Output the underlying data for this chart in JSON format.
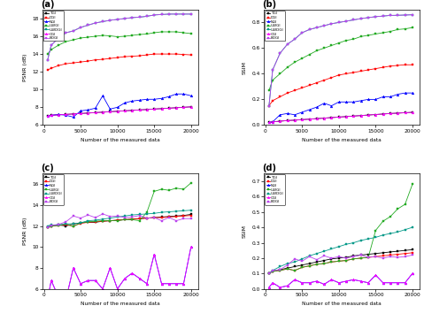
{
  "x": [
    500,
    1000,
    2000,
    3000,
    4000,
    5000,
    6000,
    7000,
    8000,
    9000,
    10000,
    11000,
    12000,
    13000,
    14000,
    15000,
    16000,
    17000,
    18000,
    19000,
    20000
  ],
  "legend_labels": [
    "TGI",
    "DGI",
    "NGI",
    "UWGI",
    "UWDGI",
    "CGI",
    "BDGI"
  ],
  "panel_labels": [
    "(a)",
    "(b)",
    "(c)",
    "(d)"
  ],
  "series_colors": {
    "TGI": "black",
    "DGI": "red",
    "NGI": "blue",
    "UWGI": "#22aa22",
    "UWDGI": "#009988",
    "CGI": "magenta",
    "BDGI": "#bb44ee"
  },
  "series_markers": {
    "TGI": "s",
    "DGI": "s",
    "NGI": "^",
    "UWGI": "s",
    "UWDGI": "s",
    "CGI": "^",
    "BDGI": "s"
  },
  "a_psnr": {
    "TGI": [
      7.0,
      7.1,
      7.15,
      7.2,
      7.25,
      7.3,
      7.35,
      7.4,
      7.45,
      7.5,
      7.55,
      7.6,
      7.65,
      7.7,
      7.75,
      7.8,
      7.85,
      7.9,
      7.95,
      8.0,
      8.05
    ],
    "DGI": [
      12.2,
      12.4,
      12.7,
      12.9,
      13.0,
      13.1,
      13.2,
      13.35,
      13.4,
      13.5,
      13.6,
      13.7,
      13.75,
      13.8,
      13.9,
      14.0,
      14.0,
      14.0,
      14.0,
      13.95,
      13.9
    ],
    "NGI": [
      7.0,
      7.1,
      7.2,
      7.1,
      6.9,
      7.6,
      7.7,
      7.9,
      9.3,
      7.8,
      8.0,
      8.5,
      8.7,
      8.8,
      8.9,
      8.9,
      9.0,
      9.2,
      9.5,
      9.5,
      9.3
    ],
    "UWGI": [
      14.0,
      14.5,
      15.0,
      15.4,
      15.6,
      15.8,
      15.9,
      16.0,
      16.1,
      16.05,
      15.95,
      16.0,
      16.1,
      16.2,
      16.25,
      16.4,
      16.5,
      16.5,
      16.5,
      16.4,
      16.3
    ],
    "UWDGI": [
      13.3,
      15.0,
      15.8,
      16.4,
      16.6,
      17.0,
      17.25,
      17.5,
      17.65,
      17.8,
      17.9,
      18.0,
      18.1,
      18.15,
      18.25,
      18.4,
      18.45,
      18.5,
      18.5,
      18.5,
      18.5
    ],
    "CGI": [
      7.0,
      7.1,
      7.15,
      7.2,
      7.25,
      7.3,
      7.35,
      7.4,
      7.45,
      7.5,
      7.55,
      7.6,
      7.65,
      7.7,
      7.75,
      7.8,
      7.85,
      7.9,
      7.95,
      8.0,
      8.05
    ],
    "BDGI": [
      13.3,
      15.0,
      15.8,
      16.4,
      16.6,
      17.0,
      17.25,
      17.5,
      17.65,
      17.8,
      17.9,
      18.0,
      18.1,
      18.15,
      18.25,
      18.4,
      18.45,
      18.5,
      18.5,
      18.5,
      18.5
    ]
  },
  "b_ssim": {
    "TGI": [
      0.02,
      0.025,
      0.03,
      0.035,
      0.038,
      0.042,
      0.046,
      0.05,
      0.054,
      0.058,
      0.062,
      0.066,
      0.07,
      0.074,
      0.078,
      0.082,
      0.086,
      0.09,
      0.093,
      0.096,
      0.099
    ],
    "DGI": [
      0.15,
      0.19,
      0.22,
      0.25,
      0.27,
      0.29,
      0.31,
      0.33,
      0.35,
      0.37,
      0.39,
      0.4,
      0.41,
      0.42,
      0.43,
      0.44,
      0.45,
      0.46,
      0.465,
      0.47,
      0.47
    ],
    "NGI": [
      0.02,
      0.025,
      0.08,
      0.09,
      0.08,
      0.1,
      0.12,
      0.14,
      0.17,
      0.15,
      0.18,
      0.18,
      0.18,
      0.19,
      0.2,
      0.2,
      0.22,
      0.22,
      0.24,
      0.25,
      0.25
    ],
    "UWGI": [
      0.27,
      0.35,
      0.4,
      0.45,
      0.49,
      0.52,
      0.55,
      0.58,
      0.6,
      0.62,
      0.64,
      0.66,
      0.67,
      0.69,
      0.7,
      0.71,
      0.72,
      0.73,
      0.745,
      0.75,
      0.76
    ],
    "UWDGI": [
      0.15,
      0.43,
      0.56,
      0.63,
      0.67,
      0.72,
      0.745,
      0.76,
      0.775,
      0.79,
      0.8,
      0.81,
      0.82,
      0.83,
      0.838,
      0.845,
      0.85,
      0.855,
      0.856,
      0.858,
      0.86
    ],
    "CGI": [
      0.02,
      0.025,
      0.03,
      0.035,
      0.038,
      0.042,
      0.046,
      0.05,
      0.054,
      0.058,
      0.062,
      0.066,
      0.07,
      0.074,
      0.078,
      0.082,
      0.086,
      0.09,
      0.093,
      0.096,
      0.099
    ],
    "BDGI": [
      0.15,
      0.43,
      0.56,
      0.63,
      0.67,
      0.72,
      0.745,
      0.76,
      0.775,
      0.79,
      0.8,
      0.81,
      0.82,
      0.83,
      0.838,
      0.845,
      0.85,
      0.855,
      0.856,
      0.858,
      0.86
    ]
  },
  "c_psnr": {
    "TGI": [
      11.9,
      12.0,
      12.1,
      12.0,
      12.2,
      12.3,
      12.35,
      12.35,
      12.45,
      12.5,
      12.55,
      12.6,
      12.65,
      12.7,
      12.75,
      12.8,
      12.85,
      12.9,
      12.95,
      13.0,
      13.1
    ],
    "DGI": [
      11.85,
      12.0,
      12.05,
      12.1,
      12.0,
      12.25,
      12.35,
      12.4,
      12.45,
      12.5,
      12.55,
      12.6,
      12.65,
      12.7,
      12.75,
      12.8,
      12.8,
      12.85,
      12.9,
      12.95,
      13.0
    ],
    "NGI": [
      5.0,
      6.8,
      5.2,
      5.0,
      8.0,
      6.5,
      6.8,
      6.8,
      6.0,
      8.0,
      6.0,
      7.0,
      7.5,
      7.0,
      6.5,
      9.3,
      6.5,
      6.5,
      6.5,
      6.5,
      10.0
    ],
    "UWGI": [
      11.9,
      12.0,
      12.05,
      12.2,
      11.95,
      12.3,
      12.4,
      12.45,
      12.5,
      12.5,
      12.5,
      12.6,
      12.6,
      12.5,
      13.3,
      15.3,
      15.5,
      15.4,
      15.6,
      15.5,
      16.1
    ],
    "UWDGI": [
      12.0,
      12.1,
      12.1,
      12.2,
      12.2,
      12.3,
      12.5,
      12.55,
      12.65,
      12.75,
      12.85,
      12.95,
      13.05,
      13.1,
      13.15,
      13.2,
      13.3,
      13.35,
      13.4,
      13.45,
      13.5
    ],
    "CGI": [
      5.0,
      6.8,
      5.2,
      5.0,
      8.0,
      6.5,
      6.8,
      6.8,
      6.0,
      8.0,
      6.0,
      7.0,
      7.5,
      7.0,
      6.5,
      9.3,
      6.5,
      6.5,
      6.5,
      6.5,
      10.0
    ],
    "BDGI": [
      11.85,
      12.05,
      12.15,
      12.4,
      12.95,
      12.75,
      13.05,
      12.8,
      13.15,
      12.9,
      12.95,
      12.8,
      12.85,
      13.0,
      12.75,
      12.8,
      12.5,
      12.8,
      12.5,
      12.7,
      12.7
    ]
  },
  "d_ssim": {
    "TGI": [
      0.1,
      0.115,
      0.125,
      0.135,
      0.145,
      0.155,
      0.165,
      0.175,
      0.185,
      0.195,
      0.2,
      0.205,
      0.215,
      0.22,
      0.225,
      0.23,
      0.235,
      0.24,
      0.245,
      0.25,
      0.255
    ],
    "DGI": [
      0.1,
      0.115,
      0.12,
      0.13,
      0.12,
      0.14,
      0.15,
      0.16,
      0.165,
      0.175,
      0.18,
      0.185,
      0.195,
      0.2,
      0.205,
      0.21,
      0.215,
      0.22,
      0.225,
      0.23,
      0.235
    ],
    "NGI": [
      0.01,
      0.04,
      0.01,
      0.02,
      0.06,
      0.04,
      0.04,
      0.05,
      0.03,
      0.06,
      0.04,
      0.05,
      0.06,
      0.05,
      0.04,
      0.09,
      0.04,
      0.04,
      0.04,
      0.04,
      0.1
    ],
    "UWGI": [
      0.1,
      0.115,
      0.12,
      0.13,
      0.12,
      0.14,
      0.15,
      0.16,
      0.165,
      0.175,
      0.18,
      0.185,
      0.195,
      0.2,
      0.205,
      0.38,
      0.44,
      0.47,
      0.52,
      0.55,
      0.68
    ],
    "UWDGI": [
      0.1,
      0.12,
      0.145,
      0.165,
      0.175,
      0.195,
      0.215,
      0.23,
      0.245,
      0.26,
      0.275,
      0.29,
      0.3,
      0.315,
      0.325,
      0.335,
      0.35,
      0.36,
      0.37,
      0.385,
      0.4
    ],
    "CGI": [
      0.01,
      0.04,
      0.01,
      0.02,
      0.06,
      0.04,
      0.04,
      0.05,
      0.03,
      0.06,
      0.04,
      0.05,
      0.06,
      0.05,
      0.04,
      0.09,
      0.04,
      0.04,
      0.04,
      0.04,
      0.1
    ],
    "BDGI": [
      0.1,
      0.12,
      0.125,
      0.155,
      0.195,
      0.18,
      0.21,
      0.19,
      0.215,
      0.2,
      0.21,
      0.2,
      0.21,
      0.22,
      0.205,
      0.21,
      0.2,
      0.21,
      0.205,
      0.21,
      0.22
    ]
  },
  "xlabel": "Number of the measured data",
  "ylabel_psnr": "PSNR (dB)",
  "ylabel_ssim": "SSIM",
  "a_ylim": [
    6,
    19
  ],
  "b_ylim": [
    0.0,
    0.9
  ],
  "c_ylim": [
    6,
    17
  ],
  "d_ylim": [
    0.0,
    0.75
  ],
  "a_yticks": [
    6,
    8,
    10,
    12,
    14,
    16,
    18
  ],
  "b_yticks": [
    0.0,
    0.2,
    0.4,
    0.6,
    0.8
  ],
  "c_yticks": [
    6,
    8,
    10,
    12,
    14,
    16
  ],
  "d_yticks": [
    0.0,
    0.1,
    0.2,
    0.3,
    0.4,
    0.5,
    0.6,
    0.7
  ],
  "xticks": [
    0,
    5000,
    10000,
    15000,
    20000
  ],
  "xtick_labels": [
    "0",
    "5000",
    "10000",
    "15000",
    "20000"
  ]
}
